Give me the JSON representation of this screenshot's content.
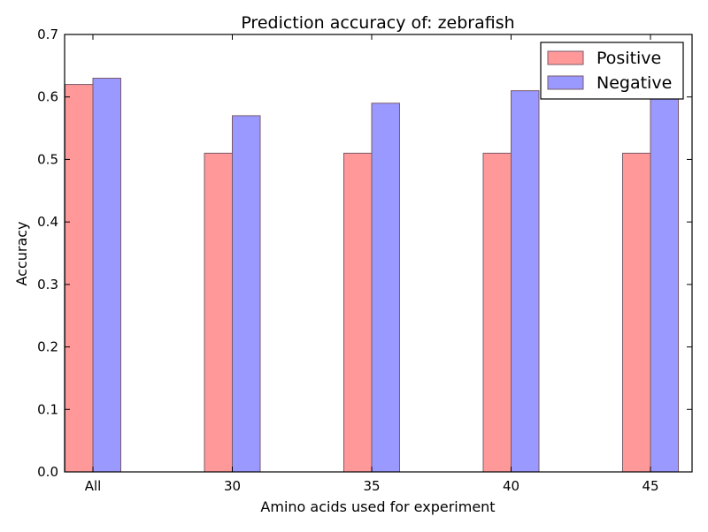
{
  "chart_data": {
    "type": "bar",
    "title": "Prediction accuracy of: zebrafish",
    "xlabel": "Amino acids used for experiment",
    "ylabel": "Accuracy",
    "categories": [
      "All",
      "30",
      "35",
      "40",
      "45"
    ],
    "series": [
      {
        "name": "Positive",
        "color": "#ff9999",
        "values": [
          0.62,
          0.51,
          0.51,
          0.51,
          0.51
        ]
      },
      {
        "name": "Negative",
        "color": "#9999ff",
        "values": [
          0.63,
          0.57,
          0.59,
          0.61,
          0.61
        ]
      }
    ],
    "ylim": [
      0,
      0.7
    ],
    "yticks": [
      "0.0",
      "0.1",
      "0.2",
      "0.3",
      "0.4",
      "0.5",
      "0.6",
      "0.7"
    ],
    "grid": false,
    "legend_position": "top-right"
  }
}
